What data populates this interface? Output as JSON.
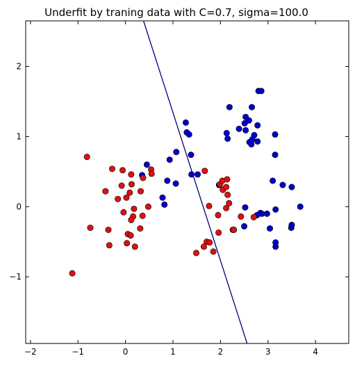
{
  "chart_data": {
    "type": "scatter",
    "title": "Underfit by traning data with C=0.7, sigma=100.0",
    "xlabel": "",
    "ylabel": "",
    "xlim": [
      -2.1,
      4.7
    ],
    "ylim": [
      -1.95,
      2.65
    ],
    "xticks": [
      -2,
      -1,
      0,
      1,
      2,
      3,
      4
    ],
    "yticks": [
      -1,
      0,
      1,
      2
    ],
    "xtick_labels": [
      "−2",
      "−1",
      "0",
      "1",
      "2",
      "3",
      "4"
    ],
    "ytick_labels": [
      "−1",
      "0",
      "1",
      "2"
    ],
    "grid": false,
    "legend": "none",
    "series": [
      {
        "color": "#0000cd",
        "points": [
          [
            1.27,
            1.2
          ],
          [
            1.29,
            1.06
          ],
          [
            1.34,
            1.03
          ],
          [
            1.07,
            0.78
          ],
          [
            0.93,
            0.67
          ],
          [
            0.45,
            0.6
          ],
          [
            0.35,
            0.45
          ],
          [
            0.88,
            0.37
          ],
          [
            1.06,
            0.33
          ],
          [
            1.39,
            0.46
          ],
          [
            1.38,
            0.74
          ],
          [
            1.52,
            0.46
          ],
          [
            0.78,
            0.13
          ],
          [
            0.82,
            0.03
          ],
          [
            2.19,
            1.42
          ],
          [
            2.66,
            1.42
          ],
          [
            2.8,
            1.65
          ],
          [
            2.86,
            1.65
          ],
          [
            2.53,
            1.28
          ],
          [
            2.6,
            1.23
          ],
          [
            2.51,
            1.19
          ],
          [
            2.78,
            1.16
          ],
          [
            2.39,
            1.11
          ],
          [
            2.53,
            1.09
          ],
          [
            2.13,
            1.05
          ],
          [
            2.15,
            0.97
          ],
          [
            2.71,
            1.02
          ],
          [
            3.15,
            1.03
          ],
          [
            2.61,
            0.92
          ],
          [
            2.67,
            0.96
          ],
          [
            2.65,
            0.89
          ],
          [
            2.78,
            0.93
          ],
          [
            3.15,
            0.74
          ],
          [
            1.97,
            0.31
          ],
          [
            3.1,
            0.37
          ],
          [
            3.31,
            0.31
          ],
          [
            3.5,
            0.28
          ],
          [
            3.68,
            0.0
          ],
          [
            2.52,
            -0.01
          ],
          [
            3.16,
            -0.04
          ],
          [
            2.84,
            -0.09
          ],
          [
            2.87,
            -0.1
          ],
          [
            2.77,
            -0.12
          ],
          [
            2.98,
            -0.1
          ],
          [
            2.5,
            -0.28
          ],
          [
            3.04,
            -0.31
          ],
          [
            3.5,
            -0.26
          ],
          [
            3.49,
            -0.3
          ],
          [
            3.16,
            -0.51
          ],
          [
            3.16,
            -0.57
          ],
          [
            2.28,
            -0.33
          ]
        ]
      },
      {
        "color": "#dd1111",
        "points": [
          [
            -0.81,
            0.71
          ],
          [
            -0.28,
            0.54
          ],
          [
            -0.06,
            0.52
          ],
          [
            0.54,
            0.53
          ],
          [
            0.12,
            0.46
          ],
          [
            0.55,
            0.47
          ],
          [
            0.37,
            0.41
          ],
          [
            -0.42,
            0.22
          ],
          [
            -0.08,
            0.3
          ],
          [
            0.13,
            0.32
          ],
          [
            0.32,
            0.22
          ],
          [
            0.09,
            0.2
          ],
          [
            -0.16,
            0.11
          ],
          [
            0.02,
            0.13
          ],
          [
            0.48,
            0.0
          ],
          [
            0.36,
            -0.13
          ],
          [
            0.18,
            -0.03
          ],
          [
            -0.04,
            -0.08
          ],
          [
            0.16,
            -0.14
          ],
          [
            0.12,
            -0.19
          ],
          [
            -0.74,
            -0.3
          ],
          [
            -0.36,
            -0.33
          ],
          [
            0.31,
            -0.31
          ],
          [
            0.05,
            -0.39
          ],
          [
            0.11,
            -0.41
          ],
          [
            -0.34,
            -0.55
          ],
          [
            0.03,
            -0.52
          ],
          [
            0.2,
            -0.57
          ],
          [
            -1.12,
            -0.95
          ],
          [
            1.67,
            0.51
          ],
          [
            1.76,
            0.01
          ],
          [
            1.99,
            0.32
          ],
          [
            2.04,
            0.37
          ],
          [
            2.14,
            0.39
          ],
          [
            2.05,
            0.24
          ],
          [
            2.12,
            0.28
          ],
          [
            2.15,
            0.17
          ],
          [
            2.18,
            0.05
          ],
          [
            2.12,
            -0.02
          ],
          [
            1.95,
            -0.12
          ],
          [
            2.43,
            -0.14
          ],
          [
            2.7,
            -0.15
          ],
          [
            1.96,
            -0.37
          ],
          [
            2.26,
            -0.33
          ],
          [
            2.28,
            -0.33
          ],
          [
            1.71,
            -0.5
          ],
          [
            1.77,
            -0.51
          ],
          [
            1.65,
            -0.57
          ],
          [
            1.85,
            -0.64
          ],
          [
            1.49,
            -0.66
          ]
        ]
      }
    ],
    "decision_boundary": {
      "color": "#00007a",
      "points": [
        [
          0.38,
          2.65
        ],
        [
          2.56,
          -1.95
        ]
      ]
    }
  }
}
